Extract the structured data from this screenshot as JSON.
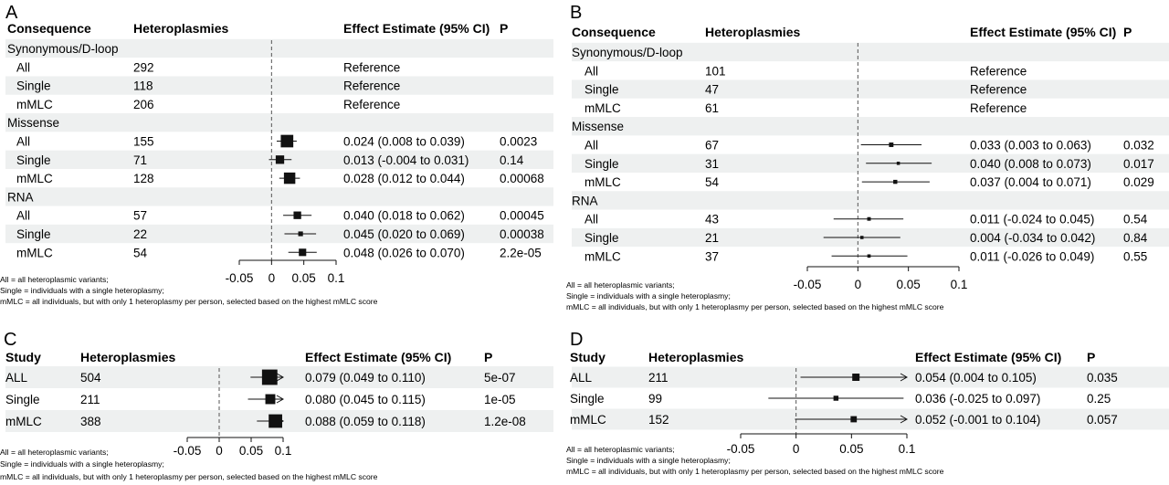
{
  "panels": [
    {
      "id": "A",
      "label": "A",
      "headers": {
        "consequence": "Consequence",
        "heteroplasmies": "Heteroplasmies",
        "effect": "Effect Estimate (95% CI)",
        "p": "P"
      },
      "groups": [
        {
          "name": "Synonymous/D-loop",
          "rows": [
            {
              "label": "All",
              "n": "292",
              "effect": "Reference",
              "p": ""
            },
            {
              "label": "Single",
              "n": "118",
              "effect": "Reference",
              "p": ""
            },
            {
              "label": "mMLC",
              "n": "206",
              "effect": "Reference",
              "p": ""
            }
          ]
        },
        {
          "name": "Missense",
          "rows": [
            {
              "label": "All",
              "n": "155",
              "effect": "0.024 (0.008 to 0.039)",
              "p": "0.0023"
            },
            {
              "label": "Single",
              "n": "71",
              "effect": "0.013 (-0.004 to 0.031)",
              "p": "0.14"
            },
            {
              "label": "mMLC",
              "n": "128",
              "effect": "0.028 (0.012 to 0.044)",
              "p": "0.00068"
            }
          ]
        },
        {
          "name": "RNA",
          "rows": [
            {
              "label": "All",
              "n": "57",
              "effect": "0.040 (0.018 to 0.062)",
              "p": "0.00045"
            },
            {
              "label": "Single",
              "n": "22",
              "effect": "0.045 (0.020 to 0.069)",
              "p": "0.00038"
            },
            {
              "label": "mMLC",
              "n": "54",
              "effect": "0.048 (0.026 to 0.070)",
              "p": "2.2e-05"
            }
          ]
        }
      ],
      "footnotes": [
        "All = all heteroplasmic variants;",
        "Single = individuals with a single heteroplasmy;",
        "mMLC = all individuals, but with only 1 heteroplasmy per person, selected based on the highest mMLC score"
      ]
    },
    {
      "id": "B",
      "label": "B",
      "headers": {
        "consequence": "Consequence",
        "heteroplasmies": "Heteroplasmies",
        "effect": "Effect Estimate (95% CI)",
        "p": "P"
      },
      "groups": [
        {
          "name": "Synonymous/D-loop",
          "rows": [
            {
              "label": "All",
              "n": "101",
              "effect": "Reference",
              "p": ""
            },
            {
              "label": "Single",
              "n": "47",
              "effect": "Reference",
              "p": ""
            },
            {
              "label": "mMLC",
              "n": "61",
              "effect": "Reference",
              "p": ""
            }
          ]
        },
        {
          "name": "Missense",
          "rows": [
            {
              "label": "All",
              "n": "67",
              "effect": "0.033 (0.003 to 0.063)",
              "p": "0.032"
            },
            {
              "label": "Single",
              "n": "31",
              "effect": "0.040 (0.008 to 0.073)",
              "p": "0.017"
            },
            {
              "label": "mMLC",
              "n": "54",
              "effect": "0.037 (0.004 to 0.071)",
              "p": "0.029"
            }
          ]
        },
        {
          "name": "RNA",
          "rows": [
            {
              "label": "All",
              "n": "43",
              "effect": "0.011 (-0.024 to 0.045)",
              "p": "0.54"
            },
            {
              "label": "Single",
              "n": "21",
              "effect": "0.004 (-0.034 to 0.042)",
              "p": "0.84"
            },
            {
              "label": "mMLC",
              "n": "37",
              "effect": "0.011 (-0.026 to 0.049)",
              "p": "0.55"
            }
          ]
        }
      ],
      "footnotes": [
        "All = all heteroplasmic variants;",
        "Single = individuals with a single heteroplasmy;",
        "mMLC = all individuals, but with only 1 heteroplasmy per person, selected based on the highest mMLC score"
      ]
    },
    {
      "id": "C",
      "label": "C",
      "headers": {
        "consequence": "Study",
        "heteroplasmies": "Heteroplasmies",
        "effect": "Effect Estimate (95% CI)",
        "p": "P"
      },
      "groups": [
        {
          "name": "",
          "rows": [
            {
              "label": "ALL",
              "n": "504",
              "effect": "0.079 (0.049 to 0.110)",
              "p": "5e-07"
            },
            {
              "label": "Single",
              "n": "211",
              "effect": "0.080 (0.045 to 0.115)",
              "p": "1e-05"
            },
            {
              "label": "mMLC",
              "n": "388",
              "effect": "0.088 (0.059 to 0.118)",
              "p": "1.2e-08"
            }
          ]
        }
      ],
      "footnotes": [
        "All = all heteroplasmic variants;",
        "Single = individuals with a single heteroplasmy;",
        "mMLC = all individuals, but with only 1 heteroplasmy per person, selected based on the highest mMLC score"
      ]
    },
    {
      "id": "D",
      "label": "D",
      "headers": {
        "consequence": "Study",
        "heteroplasmies": "Heteroplasmies",
        "effect": "Effect Estimate (95% CI)",
        "p": "P"
      },
      "groups": [
        {
          "name": "",
          "rows": [
            {
              "label": "ALL",
              "n": "211",
              "effect": "0.054 (0.004 to 0.105)",
              "p": "0.035"
            },
            {
              "label": "Single",
              "n": "99",
              "effect": "0.036 (-0.025 to 0.097)",
              "p": "0.25"
            },
            {
              "label": "mMLC",
              "n": "152",
              "effect": "0.052 (-0.001 to 0.104)",
              "p": "0.057"
            }
          ]
        }
      ],
      "footnotes": [
        "All = all heteroplasmic variants;",
        "Single = individuals with a single heteroplasmy;",
        "mMLC = all individuals, but with only 1 heteroplasmy per person, selected based on the highest mMLC score"
      ]
    }
  ],
  "chart_data": [
    {
      "type": "forest",
      "panel": "A",
      "xlim": [
        -0.05,
        0.1
      ],
      "xticks": [
        "-0.05",
        "0",
        "0.05",
        "0.1"
      ],
      "reference_line": 0,
      "series": [
        {
          "name": "Missense",
          "points": [
            {
              "label": "All",
              "estimate": 0.024,
              "lower": 0.008,
              "upper": 0.039,
              "n": 155
            },
            {
              "label": "Single",
              "estimate": 0.013,
              "lower": -0.004,
              "upper": 0.031,
              "n": 71
            },
            {
              "label": "mMLC",
              "estimate": 0.028,
              "lower": 0.012,
              "upper": 0.044,
              "n": 128
            }
          ]
        },
        {
          "name": "RNA",
          "points": [
            {
              "label": "All",
              "estimate": 0.04,
              "lower": 0.018,
              "upper": 0.062,
              "n": 57
            },
            {
              "label": "Single",
              "estimate": 0.045,
              "lower": 0.02,
              "upper": 0.069,
              "n": 22
            },
            {
              "label": "mMLC",
              "estimate": 0.048,
              "lower": 0.026,
              "upper": 0.07,
              "n": 54
            }
          ]
        }
      ]
    },
    {
      "type": "forest",
      "panel": "B",
      "xlim": [
        -0.05,
        0.1
      ],
      "xticks": [
        "-0.05",
        "0",
        "0.05",
        "0.1"
      ],
      "reference_line": 0,
      "series": [
        {
          "name": "Missense",
          "points": [
            {
              "label": "All",
              "estimate": 0.033,
              "lower": 0.003,
              "upper": 0.063,
              "n": 67
            },
            {
              "label": "Single",
              "estimate": 0.04,
              "lower": 0.008,
              "upper": 0.073,
              "n": 31
            },
            {
              "label": "mMLC",
              "estimate": 0.037,
              "lower": 0.004,
              "upper": 0.071,
              "n": 54
            }
          ]
        },
        {
          "name": "RNA",
          "points": [
            {
              "label": "All",
              "estimate": 0.011,
              "lower": -0.024,
              "upper": 0.045,
              "n": 43
            },
            {
              "label": "Single",
              "estimate": 0.004,
              "lower": -0.034,
              "upper": 0.042,
              "n": 21
            },
            {
              "label": "mMLC",
              "estimate": 0.011,
              "lower": -0.026,
              "upper": 0.049,
              "n": 37
            }
          ]
        }
      ]
    },
    {
      "type": "forest",
      "panel": "C",
      "xlim": [
        -0.05,
        0.1
      ],
      "xticks": [
        "-0.05",
        "0",
        "0.05",
        "0.1"
      ],
      "reference_line": 0,
      "series": [
        {
          "points": [
            {
              "label": "ALL",
              "estimate": 0.079,
              "lower": 0.049,
              "upper": 0.11,
              "n": 504
            },
            {
              "label": "Single",
              "estimate": 0.08,
              "lower": 0.045,
              "upper": 0.115,
              "n": 211
            },
            {
              "label": "mMLC",
              "estimate": 0.088,
              "lower": 0.059,
              "upper": 0.118,
              "n": 388
            }
          ]
        }
      ]
    },
    {
      "type": "forest",
      "panel": "D",
      "xlim": [
        -0.05,
        0.1
      ],
      "xticks": [
        "-0.05",
        "0",
        "0.05",
        "0.1"
      ],
      "reference_line": 0,
      "series": [
        {
          "points": [
            {
              "label": "ALL",
              "estimate": 0.054,
              "lower": 0.004,
              "upper": 0.105,
              "n": 211
            },
            {
              "label": "Single",
              "estimate": 0.036,
              "lower": -0.025,
              "upper": 0.097,
              "n": 99
            },
            {
              "label": "mMLC",
              "estimate": 0.052,
              "lower": -0.001,
              "upper": 0.104,
              "n": 152
            }
          ]
        }
      ]
    }
  ]
}
